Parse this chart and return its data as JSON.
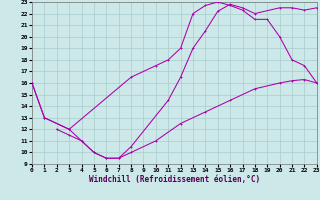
{
  "xlabel": "Windchill (Refroidissement éolien,°C)",
  "bg_color": "#cce8e8",
  "grid_color": "#a8cccc",
  "line_color": "#aa00aa",
  "xlim": [
    0,
    23
  ],
  "ylim": [
    9,
    23
  ],
  "xticks": [
    0,
    1,
    2,
    3,
    4,
    5,
    6,
    7,
    8,
    9,
    10,
    11,
    12,
    13,
    14,
    15,
    16,
    17,
    18,
    19,
    20,
    21,
    22,
    23
  ],
  "yticks": [
    9,
    10,
    11,
    12,
    13,
    14,
    15,
    16,
    17,
    18,
    19,
    20,
    21,
    22,
    23
  ],
  "curveA_x": [
    0,
    1,
    3,
    4,
    5,
    6,
    7,
    8,
    11,
    12,
    13,
    14,
    15,
    16,
    17,
    18,
    20,
    21,
    22,
    23
  ],
  "curveA_y": [
    16,
    13,
    12,
    11,
    10,
    9.5,
    9.5,
    10.5,
    14.5,
    16.5,
    19.0,
    20.5,
    22.2,
    22.8,
    22.5,
    22.0,
    22.5,
    22.5,
    22.3,
    22.5
  ],
  "curveB_x": [
    0,
    1,
    3,
    8,
    10,
    11,
    12,
    13,
    14,
    15,
    16,
    17,
    18,
    19,
    20,
    21,
    22,
    23
  ],
  "curveB_y": [
    16,
    13,
    12,
    16.5,
    17.5,
    18.0,
    19.0,
    22.0,
    22.7,
    23.0,
    22.7,
    22.3,
    21.5,
    21.5,
    20.0,
    18.0,
    17.5,
    16.0
  ],
  "curveC_x": [
    2,
    3,
    4,
    5,
    6,
    7,
    8,
    10,
    12,
    14,
    16,
    18,
    20,
    21,
    22,
    23
  ],
  "curveC_y": [
    12,
    11.5,
    11.0,
    10.0,
    9.5,
    9.5,
    10.0,
    11.0,
    12.5,
    13.5,
    14.5,
    15.5,
    16.0,
    16.2,
    16.3,
    16.0
  ]
}
